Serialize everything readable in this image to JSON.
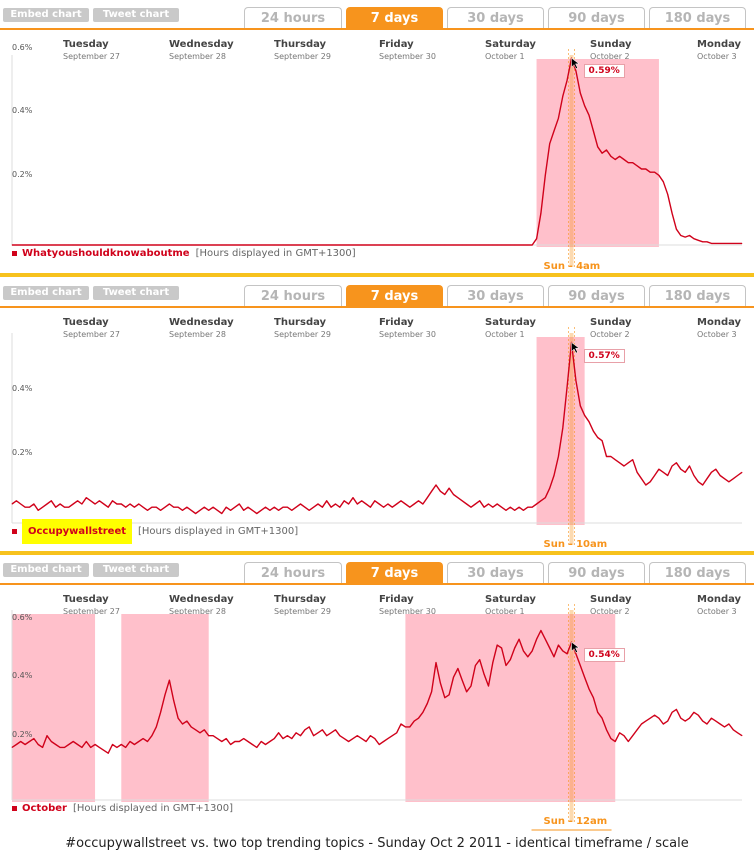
{
  "buttons": {
    "embed": "Embed chart",
    "tweet": "Tweet chart"
  },
  "tabs": [
    "24 hours",
    "7 days",
    "30 days",
    "90 days",
    "180 days"
  ],
  "active_tab": 1,
  "days": [
    {
      "name": "Tuesday",
      "date": "September 27"
    },
    {
      "name": "Wednesday",
      "date": "September 28"
    },
    {
      "name": "Thursday",
      "date": "September 29"
    },
    {
      "name": "Friday",
      "date": "September 30"
    },
    {
      "name": "Saturday",
      "date": "October 1"
    },
    {
      "name": "Sunday",
      "date": "October 2"
    },
    {
      "name": "Monday",
      "date": "October 3"
    }
  ],
  "hours_note": "[Hours displayed in GMT+1300]",
  "caption": "#occupywallstreet vs. two top trending topics - Sunday Oct 2 2011 - identical timeframe / scale",
  "colors": {
    "line": "#d0021b",
    "shade": "#ffc0cb",
    "accent": "#f7941d",
    "highlight": "#ffff00",
    "separator": "#f7c21d"
  },
  "chart_data": [
    {
      "type": "line",
      "series": [
        {
          "name": "Whatyoushouldknowaboutme",
          "values": [
            0,
            0,
            0,
            0,
            0,
            0,
            0,
            0,
            0,
            0,
            0,
            0,
            0,
            0,
            0,
            0,
            0,
            0,
            0,
            0,
            0,
            0,
            0,
            0,
            0,
            0,
            0,
            0,
            0,
            0,
            0,
            0,
            0,
            0,
            0,
            0,
            0,
            0,
            0,
            0,
            0,
            0,
            0,
            0,
            0,
            0,
            0,
            0,
            0,
            0,
            0,
            0,
            0,
            0,
            0,
            0,
            0,
            0,
            0,
            0,
            0,
            0,
            0,
            0,
            0,
            0,
            0,
            0,
            0,
            0,
            0,
            0,
            0,
            0,
            0,
            0,
            0,
            0,
            0,
            0,
            0,
            0,
            0,
            0,
            0,
            0,
            0,
            0,
            0,
            0,
            0,
            0,
            0,
            0,
            0,
            0,
            0,
            0,
            0,
            0,
            0,
            0,
            0,
            0,
            0,
            0,
            0,
            0,
            0,
            0,
            0,
            0,
            0,
            0,
            0,
            0,
            0,
            0,
            0,
            0,
            0.02,
            0.1,
            0.22,
            0.32,
            0.36,
            0.4,
            0.47,
            0.52,
            0.59,
            0.55,
            0.48,
            0.44,
            0.41,
            0.36,
            0.31,
            0.29,
            0.3,
            0.28,
            0.27,
            0.28,
            0.27,
            0.26,
            0.26,
            0.25,
            0.24,
            0.24,
            0.23,
            0.23,
            0.22,
            0.2,
            0.16,
            0.1,
            0.05,
            0.03,
            0.025,
            0.03,
            0.02,
            0.015,
            0.01,
            0.01,
            0.005,
            0.005,
            0.005,
            0.005,
            0.005,
            0.005,
            0.005,
            0.005
          ]
        }
      ],
      "ylabels": [
        "0.6%",
        "0.4%",
        "0.2%"
      ],
      "ylim": [
        0,
        0.6
      ],
      "highlight": {
        "start": 120,
        "end": 148
      },
      "peak": {
        "index": 128,
        "label": "0.59%"
      },
      "cursor_label": "Sun - 4am"
    },
    {
      "type": "line",
      "series": [
        {
          "name": "Occupywallstreet",
          "values": [
            0.06,
            0.07,
            0.06,
            0.05,
            0.05,
            0.06,
            0.04,
            0.05,
            0.06,
            0.07,
            0.05,
            0.06,
            0.05,
            0.05,
            0.06,
            0.07,
            0.06,
            0.08,
            0.07,
            0.06,
            0.07,
            0.06,
            0.05,
            0.07,
            0.06,
            0.06,
            0.05,
            0.06,
            0.05,
            0.06,
            0.05,
            0.04,
            0.05,
            0.05,
            0.04,
            0.05,
            0.06,
            0.05,
            0.05,
            0.04,
            0.05,
            0.04,
            0.03,
            0.04,
            0.05,
            0.04,
            0.05,
            0.04,
            0.03,
            0.05,
            0.04,
            0.05,
            0.06,
            0.04,
            0.05,
            0.04,
            0.03,
            0.04,
            0.05,
            0.04,
            0.05,
            0.04,
            0.05,
            0.05,
            0.04,
            0.05,
            0.06,
            0.05,
            0.04,
            0.05,
            0.06,
            0.05,
            0.07,
            0.05,
            0.06,
            0.05,
            0.07,
            0.06,
            0.08,
            0.06,
            0.07,
            0.06,
            0.05,
            0.07,
            0.06,
            0.05,
            0.06,
            0.05,
            0.06,
            0.07,
            0.06,
            0.05,
            0.06,
            0.07,
            0.06,
            0.08,
            0.1,
            0.12,
            0.1,
            0.09,
            0.11,
            0.09,
            0.08,
            0.07,
            0.06,
            0.05,
            0.06,
            0.07,
            0.05,
            0.06,
            0.05,
            0.06,
            0.05,
            0.04,
            0.05,
            0.04,
            0.05,
            0.04,
            0.05,
            0.05,
            0.06,
            0.07,
            0.08,
            0.11,
            0.15,
            0.21,
            0.3,
            0.43,
            0.57,
            0.45,
            0.37,
            0.34,
            0.32,
            0.29,
            0.27,
            0.26,
            0.21,
            0.21,
            0.2,
            0.19,
            0.18,
            0.19,
            0.2,
            0.16,
            0.14,
            0.12,
            0.13,
            0.15,
            0.17,
            0.16,
            0.15,
            0.18,
            0.19,
            0.17,
            0.16,
            0.18,
            0.15,
            0.13,
            0.12,
            0.14,
            0.16,
            0.17,
            0.15,
            0.14,
            0.13,
            0.14,
            0.15,
            0.16
          ]
        }
      ],
      "ylabels": [
        "0.4%",
        "0.2%"
      ],
      "ylim": [
        0,
        0.6
      ],
      "highlight": {
        "start": 120,
        "end": 131
      },
      "peak": {
        "index": 128,
        "label": "0.57%"
      },
      "cursor_label": "Sun - 10am"
    },
    {
      "type": "line",
      "series": [
        {
          "name": "October",
          "values": [
            0.18,
            0.19,
            0.2,
            0.19,
            0.2,
            0.21,
            0.19,
            0.18,
            0.22,
            0.2,
            0.19,
            0.18,
            0.18,
            0.19,
            0.2,
            0.19,
            0.18,
            0.2,
            0.18,
            0.19,
            0.18,
            0.17,
            0.16,
            0.19,
            0.18,
            0.19,
            0.18,
            0.2,
            0.19,
            0.2,
            0.21,
            0.2,
            0.22,
            0.25,
            0.3,
            0.36,
            0.41,
            0.34,
            0.28,
            0.26,
            0.27,
            0.25,
            0.24,
            0.23,
            0.24,
            0.22,
            0.22,
            0.21,
            0.2,
            0.21,
            0.19,
            0.2,
            0.2,
            0.21,
            0.2,
            0.19,
            0.18,
            0.2,
            0.19,
            0.2,
            0.21,
            0.23,
            0.21,
            0.22,
            0.21,
            0.23,
            0.22,
            0.24,
            0.25,
            0.22,
            0.23,
            0.24,
            0.22,
            0.23,
            0.24,
            0.22,
            0.21,
            0.2,
            0.21,
            0.22,
            0.21,
            0.2,
            0.22,
            0.21,
            0.19,
            0.2,
            0.21,
            0.22,
            0.23,
            0.26,
            0.25,
            0.25,
            0.27,
            0.28,
            0.3,
            0.33,
            0.37,
            0.47,
            0.4,
            0.35,
            0.36,
            0.42,
            0.45,
            0.41,
            0.37,
            0.39,
            0.46,
            0.48,
            0.43,
            0.39,
            0.47,
            0.53,
            0.52,
            0.46,
            0.48,
            0.52,
            0.55,
            0.51,
            0.49,
            0.51,
            0.55,
            0.58,
            0.55,
            0.52,
            0.49,
            0.53,
            0.51,
            0.5,
            0.54,
            0.5,
            0.46,
            0.42,
            0.38,
            0.35,
            0.3,
            0.28,
            0.24,
            0.21,
            0.2,
            0.23,
            0.22,
            0.2,
            0.22,
            0.24,
            0.26,
            0.27,
            0.28,
            0.29,
            0.28,
            0.26,
            0.27,
            0.3,
            0.31,
            0.28,
            0.27,
            0.28,
            0.3,
            0.29,
            0.27,
            0.26,
            0.28,
            0.27,
            0.26,
            0.25,
            0.26,
            0.24,
            0.23,
            0.22
          ]
        }
      ],
      "ylabels": [
        "0.6%",
        "0.4%",
        "0.2%"
      ],
      "ylim": [
        0,
        0.65
      ],
      "highlights": [
        {
          "start": 0,
          "end": 19
        },
        {
          "start": 25,
          "end": 45
        },
        {
          "start": 90,
          "end": 138
        }
      ],
      "highlight": {
        "start": 90,
        "end": 138
      },
      "peak": {
        "index": 128,
        "label": "0.54%"
      },
      "cursor_label": "Sun - 12am"
    }
  ]
}
